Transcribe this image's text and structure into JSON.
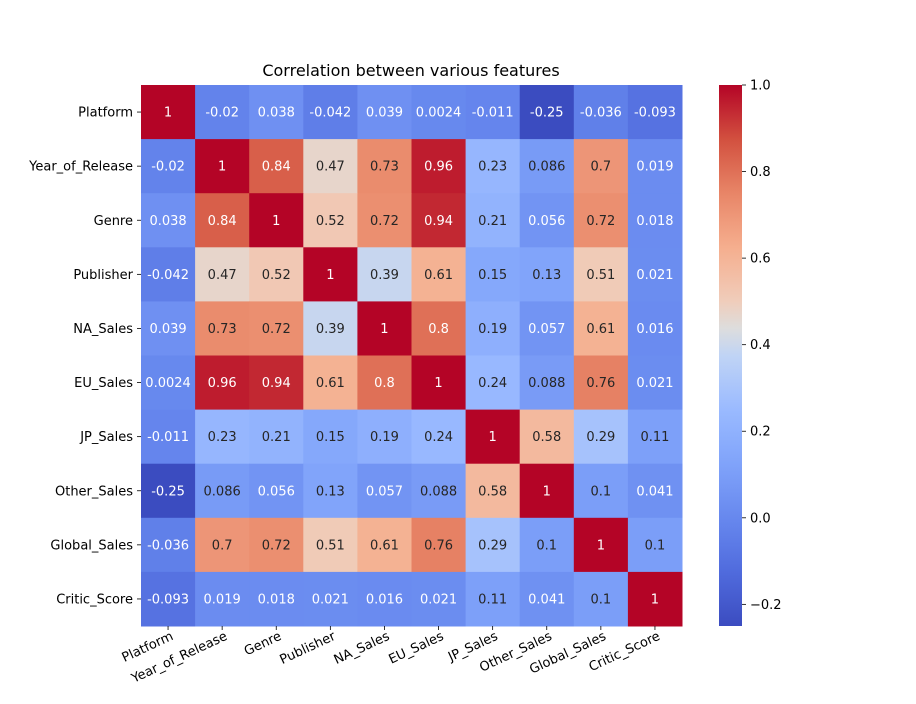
{
  "chart_data": {
    "type": "heatmap",
    "title": "Correlation between various features",
    "x_labels": [
      "Platform",
      "Year_of_Release",
      "Genre",
      "Publisher",
      "NA_Sales",
      "EU_Sales",
      "JP_Sales",
      "Other_Sales",
      "Global_Sales",
      "Critic_Score"
    ],
    "y_labels": [
      "Platform",
      "Year_of_Release",
      "Genre",
      "Publisher",
      "NA_Sales",
      "EU_Sales",
      "JP_Sales",
      "Other_Sales",
      "Global_Sales",
      "Critic_Score"
    ],
    "values": [
      [
        1,
        -0.02,
        0.038,
        -0.042,
        0.039,
        0.0024,
        -0.011,
        -0.25,
        -0.036,
        -0.093
      ],
      [
        -0.02,
        1,
        0.84,
        0.47,
        0.73,
        0.96,
        0.23,
        0.086,
        0.7,
        0.019
      ],
      [
        0.038,
        0.84,
        1,
        0.52,
        0.72,
        0.94,
        0.21,
        0.056,
        0.72,
        0.018
      ],
      [
        -0.042,
        0.47,
        0.52,
        1,
        0.39,
        0.61,
        0.15,
        0.13,
        0.51,
        0.021
      ],
      [
        0.039,
        0.73,
        0.72,
        0.39,
        1,
        0.8,
        0.19,
        0.057,
        0.61,
        0.016
      ],
      [
        0.0024,
        0.96,
        0.94,
        0.61,
        0.8,
        1,
        0.24,
        0.088,
        0.76,
        0.021
      ],
      [
        -0.011,
        0.23,
        0.21,
        0.15,
        0.19,
        0.24,
        1,
        0.58,
        0.29,
        0.11
      ],
      [
        -0.25,
        0.086,
        0.056,
        0.13,
        0.057,
        0.088,
        0.58,
        1,
        0.1,
        0.041
      ],
      [
        -0.036,
        0.7,
        0.72,
        0.51,
        0.61,
        0.76,
        0.29,
        0.1,
        1,
        0.1
      ],
      [
        -0.093,
        0.019,
        0.018,
        0.021,
        0.016,
        0.021,
        0.11,
        0.041,
        0.1,
        1
      ]
    ],
    "colormap": "coolwarm",
    "vmin": -0.25,
    "vmax": 1,
    "colorbar_ticks": [
      "1.0",
      "0.8",
      "0.6",
      "0.4",
      "0.2",
      "0.0",
      "−0.2"
    ],
    "x_tick_rotation": "25 degrees",
    "annotated": true
  }
}
